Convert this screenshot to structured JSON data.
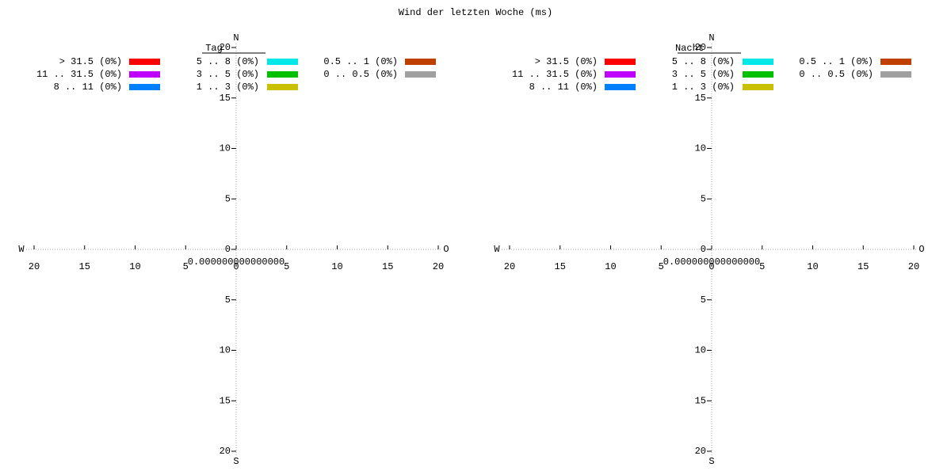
{
  "title": "Wind der letzten Woche (ms)",
  "chart_data": [
    {
      "type": "windrose",
      "title": "Tag",
      "center_label": "0.000000000000000",
      "directions": {
        "north": "N",
        "east": "O",
        "south": "S",
        "west": "W"
      },
      "xlim": [
        -20,
        20
      ],
      "ylim": [
        -20,
        20
      ],
      "xticks": [
        {
          "value": -20,
          "label": "20"
        },
        {
          "value": -15,
          "label": "15"
        },
        {
          "value": -10,
          "label": "10"
        },
        {
          "value": -5,
          "label": "5"
        },
        0,
        5,
        10,
        15,
        20
      ],
      "yticks": [
        {
          "value": -20,
          "label": "20"
        },
        {
          "value": -15,
          "label": "15"
        },
        {
          "value": -10,
          "label": "10"
        },
        {
          "value": -5,
          "label": "5"
        },
        0,
        5,
        10,
        15,
        20
      ],
      "series": [
        {
          "name": "> 31.5 (0%)",
          "color": "#ff0000"
        },
        {
          "name": "11 .. 31.5 (0%)",
          "color": "#c000ff"
        },
        {
          "name": "8 .. 11 (0%)",
          "color": "#0080ff"
        },
        {
          "name": "5 .. 8 (0%)",
          "color": "#00e8e8"
        },
        {
          "name": "3 .. 5 (0%)",
          "color": "#00c000"
        },
        {
          "name": "1 .. 3 (0%)",
          "color": "#c8c000"
        },
        {
          "name": "0.5 .. 1 (0%)",
          "color": "#c04000"
        },
        {
          "name": "0 .. 0.5 (0%)",
          "color": "#a0a0a0"
        }
      ]
    },
    {
      "type": "windrose",
      "title": "Nacht",
      "center_label": "0.000000000000000",
      "directions": {
        "north": "N",
        "east": "O",
        "south": "S",
        "west": "W"
      },
      "xlim": [
        -20,
        20
      ],
      "ylim": [
        -20,
        20
      ],
      "xticks": [
        {
          "value": -20,
          "label": "20"
        },
        {
          "value": -15,
          "label": "15"
        },
        {
          "value": -10,
          "label": "10"
        },
        {
          "value": -5,
          "label": "5"
        },
        0,
        5,
        10,
        15,
        20
      ],
      "yticks": [
        {
          "value": -20,
          "label": "20"
        },
        {
          "value": -15,
          "label": "15"
        },
        {
          "value": -10,
          "label": "10"
        },
        {
          "value": -5,
          "label": "5"
        },
        0,
        5,
        10,
        15,
        20
      ],
      "series": [
        {
          "name": "> 31.5 (0%)",
          "color": "#ff0000"
        },
        {
          "name": "11 .. 31.5 (0%)",
          "color": "#c000ff"
        },
        {
          "name": "8 .. 11 (0%)",
          "color": "#0080ff"
        },
        {
          "name": "5 .. 8 (0%)",
          "color": "#00e8e8"
        },
        {
          "name": "3 .. 5 (0%)",
          "color": "#00c000"
        },
        {
          "name": "1 .. 3 (0%)",
          "color": "#c8c000"
        },
        {
          "name": "0.5 .. 1 (0%)",
          "color": "#c04000"
        },
        {
          "name": "0 .. 0.5 (0%)",
          "color": "#a0a0a0"
        }
      ]
    }
  ]
}
